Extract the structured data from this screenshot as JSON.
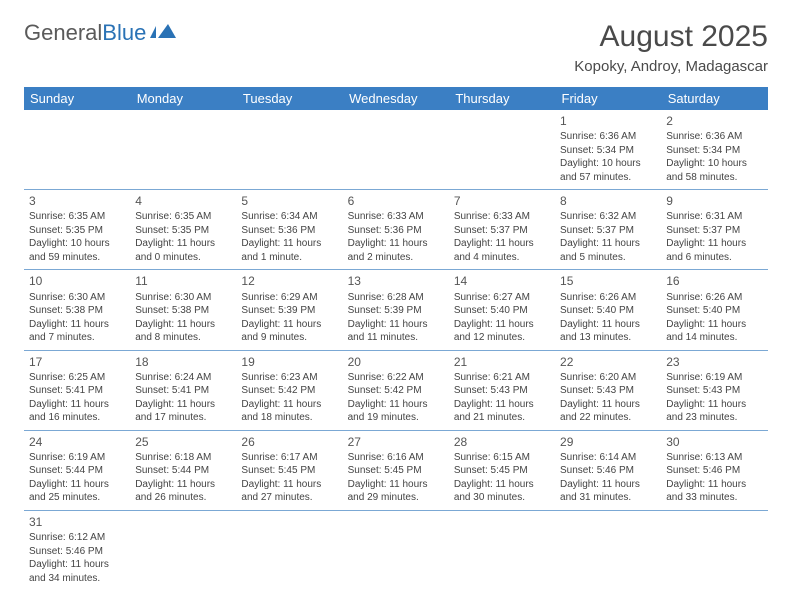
{
  "brand": {
    "general": "General",
    "blue": "Blue"
  },
  "title": "August 2025",
  "location": "Kopoky, Androy, Madagascar",
  "colors": {
    "header_bg": "#3b7fc4",
    "header_text": "#ffffff",
    "border": "#7ba8d4",
    "text": "#444444",
    "title": "#4a4a4a"
  },
  "weekdays": [
    "Sunday",
    "Monday",
    "Tuesday",
    "Wednesday",
    "Thursday",
    "Friday",
    "Saturday"
  ],
  "leading_blanks": 5,
  "days": [
    {
      "n": "1",
      "sr": "Sunrise: 6:36 AM",
      "ss": "Sunset: 5:34 PM",
      "dl": "Daylight: 10 hours and 57 minutes."
    },
    {
      "n": "2",
      "sr": "Sunrise: 6:36 AM",
      "ss": "Sunset: 5:34 PM",
      "dl": "Daylight: 10 hours and 58 minutes."
    },
    {
      "n": "3",
      "sr": "Sunrise: 6:35 AM",
      "ss": "Sunset: 5:35 PM",
      "dl": "Daylight: 10 hours and 59 minutes."
    },
    {
      "n": "4",
      "sr": "Sunrise: 6:35 AM",
      "ss": "Sunset: 5:35 PM",
      "dl": "Daylight: 11 hours and 0 minutes."
    },
    {
      "n": "5",
      "sr": "Sunrise: 6:34 AM",
      "ss": "Sunset: 5:36 PM",
      "dl": "Daylight: 11 hours and 1 minute."
    },
    {
      "n": "6",
      "sr": "Sunrise: 6:33 AM",
      "ss": "Sunset: 5:36 PM",
      "dl": "Daylight: 11 hours and 2 minutes."
    },
    {
      "n": "7",
      "sr": "Sunrise: 6:33 AM",
      "ss": "Sunset: 5:37 PM",
      "dl": "Daylight: 11 hours and 4 minutes."
    },
    {
      "n": "8",
      "sr": "Sunrise: 6:32 AM",
      "ss": "Sunset: 5:37 PM",
      "dl": "Daylight: 11 hours and 5 minutes."
    },
    {
      "n": "9",
      "sr": "Sunrise: 6:31 AM",
      "ss": "Sunset: 5:37 PM",
      "dl": "Daylight: 11 hours and 6 minutes."
    },
    {
      "n": "10",
      "sr": "Sunrise: 6:30 AM",
      "ss": "Sunset: 5:38 PM",
      "dl": "Daylight: 11 hours and 7 minutes."
    },
    {
      "n": "11",
      "sr": "Sunrise: 6:30 AM",
      "ss": "Sunset: 5:38 PM",
      "dl": "Daylight: 11 hours and 8 minutes."
    },
    {
      "n": "12",
      "sr": "Sunrise: 6:29 AM",
      "ss": "Sunset: 5:39 PM",
      "dl": "Daylight: 11 hours and 9 minutes."
    },
    {
      "n": "13",
      "sr": "Sunrise: 6:28 AM",
      "ss": "Sunset: 5:39 PM",
      "dl": "Daylight: 11 hours and 11 minutes."
    },
    {
      "n": "14",
      "sr": "Sunrise: 6:27 AM",
      "ss": "Sunset: 5:40 PM",
      "dl": "Daylight: 11 hours and 12 minutes."
    },
    {
      "n": "15",
      "sr": "Sunrise: 6:26 AM",
      "ss": "Sunset: 5:40 PM",
      "dl": "Daylight: 11 hours and 13 minutes."
    },
    {
      "n": "16",
      "sr": "Sunrise: 6:26 AM",
      "ss": "Sunset: 5:40 PM",
      "dl": "Daylight: 11 hours and 14 minutes."
    },
    {
      "n": "17",
      "sr": "Sunrise: 6:25 AM",
      "ss": "Sunset: 5:41 PM",
      "dl": "Daylight: 11 hours and 16 minutes."
    },
    {
      "n": "18",
      "sr": "Sunrise: 6:24 AM",
      "ss": "Sunset: 5:41 PM",
      "dl": "Daylight: 11 hours and 17 minutes."
    },
    {
      "n": "19",
      "sr": "Sunrise: 6:23 AM",
      "ss": "Sunset: 5:42 PM",
      "dl": "Daylight: 11 hours and 18 minutes."
    },
    {
      "n": "20",
      "sr": "Sunrise: 6:22 AM",
      "ss": "Sunset: 5:42 PM",
      "dl": "Daylight: 11 hours and 19 minutes."
    },
    {
      "n": "21",
      "sr": "Sunrise: 6:21 AM",
      "ss": "Sunset: 5:43 PM",
      "dl": "Daylight: 11 hours and 21 minutes."
    },
    {
      "n": "22",
      "sr": "Sunrise: 6:20 AM",
      "ss": "Sunset: 5:43 PM",
      "dl": "Daylight: 11 hours and 22 minutes."
    },
    {
      "n": "23",
      "sr": "Sunrise: 6:19 AM",
      "ss": "Sunset: 5:43 PM",
      "dl": "Daylight: 11 hours and 23 minutes."
    },
    {
      "n": "24",
      "sr": "Sunrise: 6:19 AM",
      "ss": "Sunset: 5:44 PM",
      "dl": "Daylight: 11 hours and 25 minutes."
    },
    {
      "n": "25",
      "sr": "Sunrise: 6:18 AM",
      "ss": "Sunset: 5:44 PM",
      "dl": "Daylight: 11 hours and 26 minutes."
    },
    {
      "n": "26",
      "sr": "Sunrise: 6:17 AM",
      "ss": "Sunset: 5:45 PM",
      "dl": "Daylight: 11 hours and 27 minutes."
    },
    {
      "n": "27",
      "sr": "Sunrise: 6:16 AM",
      "ss": "Sunset: 5:45 PM",
      "dl": "Daylight: 11 hours and 29 minutes."
    },
    {
      "n": "28",
      "sr": "Sunrise: 6:15 AM",
      "ss": "Sunset: 5:45 PM",
      "dl": "Daylight: 11 hours and 30 minutes."
    },
    {
      "n": "29",
      "sr": "Sunrise: 6:14 AM",
      "ss": "Sunset: 5:46 PM",
      "dl": "Daylight: 11 hours and 31 minutes."
    },
    {
      "n": "30",
      "sr": "Sunrise: 6:13 AM",
      "ss": "Sunset: 5:46 PM",
      "dl": "Daylight: 11 hours and 33 minutes."
    },
    {
      "n": "31",
      "sr": "Sunrise: 6:12 AM",
      "ss": "Sunset: 5:46 PM",
      "dl": "Daylight: 11 hours and 34 minutes."
    }
  ]
}
